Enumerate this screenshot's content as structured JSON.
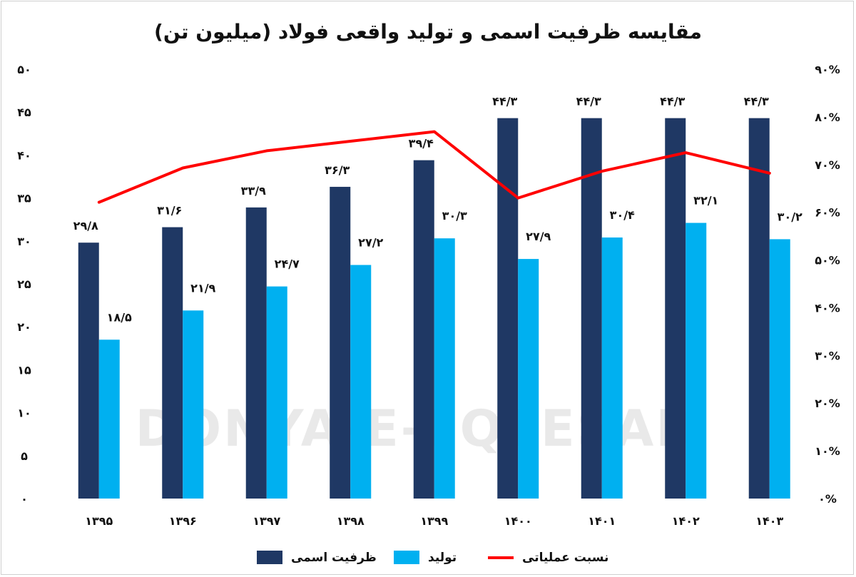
{
  "chart_data": {
    "type": "bar",
    "title": "مقایسه ظرفیت اسمی و تولید واقعی فولاد (میلیون تن)",
    "categories": [
      "۱۳۹۵",
      "۱۳۹۶",
      "۱۳۹۷",
      "۱۳۹۸",
      "۱۳۹۹",
      "۱۴۰۰",
      "۱۴۰۱",
      "۱۴۰۲",
      "۱۴۰۳"
    ],
    "series": [
      {
        "name": "ظرفیت اسمی",
        "color": "#1f3864",
        "kind": "bar",
        "values": [
          29.8,
          31.6,
          33.9,
          36.3,
          39.4,
          44.3,
          44.3,
          44.3,
          44.3
        ],
        "labels": [
          "۲۹/۸",
          "۳۱/۶",
          "۳۳/۹",
          "۳۶/۳",
          "۳۹/۴",
          "۴۴/۳",
          "۴۴/۳",
          "۴۴/۳",
          "۴۴/۳"
        ]
      },
      {
        "name": "تولید",
        "color": "#00b0f0",
        "kind": "bar",
        "values": [
          18.5,
          21.9,
          24.7,
          27.2,
          30.3,
          27.9,
          30.4,
          32.1,
          30.2
        ],
        "labels": [
          "۱۸/۵",
          "۲۱/۹",
          "۲۴/۷",
          "۲۷/۲",
          "۳۰/۳",
          "۲۷/۹",
          "۳۰/۴",
          "۳۲/۱",
          "۳۰/۲"
        ]
      },
      {
        "name": "نسبت عملیاتی",
        "color": "#ff0000",
        "kind": "line",
        "axis": "right",
        "values": [
          62.1,
          69.3,
          72.9,
          74.9,
          76.9,
          63.0,
          68.6,
          72.5,
          68.2
        ]
      }
    ],
    "ylim": [
      0,
      50
    ],
    "yticks": [
      0,
      5,
      10,
      15,
      20,
      25,
      30,
      35,
      40,
      45,
      50
    ],
    "ytick_labels": [
      "۰",
      "۵",
      "۱۰",
      "۱۵",
      "۲۰",
      "۲۵",
      "۳۰",
      "۳۵",
      "۴۰",
      "۴۵",
      "۵۰"
    ],
    "y2lim": [
      0,
      90
    ],
    "y2ticks": [
      0,
      10,
      20,
      30,
      40,
      50,
      60,
      70,
      80,
      90
    ],
    "y2tick_labels": [
      "۰%",
      "۱۰%",
      "۲۰%",
      "۳۰%",
      "۴۰%",
      "۵۰%",
      "۶۰%",
      "۷۰%",
      "۸۰%",
      "۹۰%"
    ],
    "grid": false,
    "legend_position": "bottom",
    "watermark": "DONYA-E-EQTESAD"
  }
}
